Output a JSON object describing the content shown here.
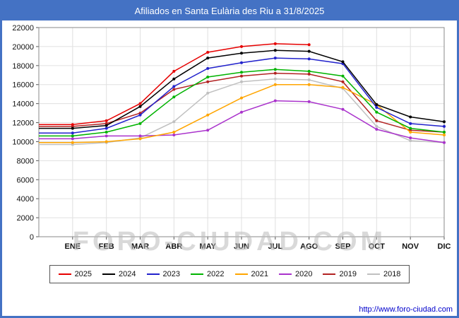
{
  "page": {
    "title": "Afiliados en Santa Eulària des Riu a 31/8/2025",
    "watermark": "FORO-CIUDAD.COM",
    "footer_url": "http://www.foro-ciudad.com",
    "accent_color": "#4472c4"
  },
  "chart_data": {
    "type": "line",
    "title": "Afiliados en Santa Eulària des Riu a 31/8/2025",
    "categories": [
      "ENE",
      "FEB",
      "MAR",
      "ABR",
      "MAY",
      "JUN",
      "JUL",
      "AGO",
      "SEP",
      "OCT",
      "NOV",
      "DIC"
    ],
    "ylim": [
      0,
      22000
    ],
    "ytick_step": 2000,
    "grid": true,
    "legend_position": "bottom",
    "series": [
      {
        "name": "2025",
        "color": "#e60000",
        "values": [
          11800,
          12200,
          14000,
          17400,
          19400,
          20000,
          20300,
          20200
        ]
      },
      {
        "name": "2024",
        "color": "#000000",
        "values": [
          11400,
          11700,
          13700,
          16600,
          18800,
          19300,
          19600,
          19500,
          18400,
          13900,
          12600,
          12100
        ]
      },
      {
        "name": "2023",
        "color": "#2222cc",
        "values": [
          10900,
          11400,
          12800,
          15800,
          17700,
          18300,
          18800,
          18700,
          18200,
          13600,
          11900,
          11600
        ]
      },
      {
        "name": "2022",
        "color": "#00b300",
        "values": [
          10600,
          11000,
          11900,
          14700,
          16800,
          17300,
          17600,
          17400,
          16900,
          13100,
          11400,
          11000
        ]
      },
      {
        "name": "2021",
        "color": "#ffa500",
        "values": [
          9900,
          10000,
          10300,
          11000,
          12800,
          14600,
          16000,
          16000,
          15700,
          13900,
          11000,
          10700
        ]
      },
      {
        "name": "2020",
        "color": "#aa33cc",
        "values": [
          10300,
          10600,
          10600,
          10700,
          11200,
          13100,
          14300,
          14200,
          13400,
          11300,
          10400,
          9900
        ]
      },
      {
        "name": "2019",
        "color": "#b22222",
        "values": [
          11600,
          11900,
          13000,
          15500,
          16300,
          16900,
          17200,
          17100,
          16300,
          12200,
          11200,
          11000
        ]
      },
      {
        "name": "2018",
        "color": "#c0c0c0",
        "values": [
          9700,
          9900,
          10400,
          12100,
          15100,
          16300,
          16600,
          16500,
          15600,
          11600,
          10100,
          9900
        ]
      }
    ]
  }
}
